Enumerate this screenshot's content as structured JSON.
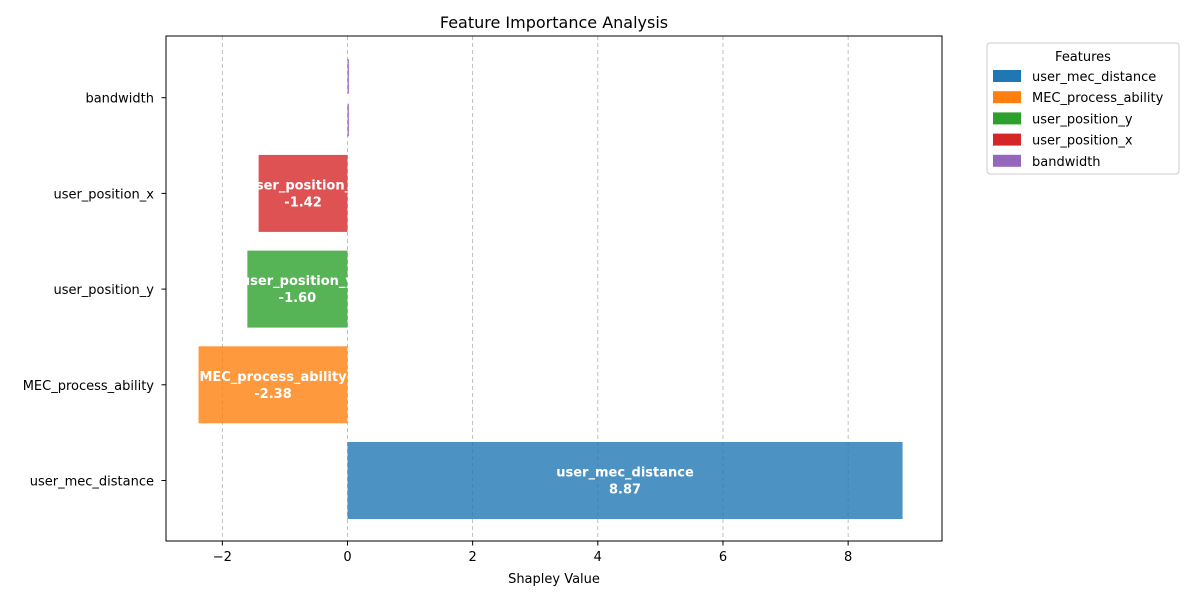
{
  "chart_data": {
    "type": "bar",
    "orientation": "horizontal",
    "title": "Feature Importance Analysis",
    "xlabel": "Shapley Value",
    "ylabel": "",
    "xlim": [
      -2.9,
      9.5
    ],
    "x_ticks": [
      -2,
      0,
      2,
      4,
      6,
      8
    ],
    "x_tick_labels": [
      "−2",
      "0",
      "2",
      "4",
      "6",
      "8"
    ],
    "grid": "x-dashed",
    "categories": [
      "user_mec_distance",
      "MEC_process_ability",
      "user_position_y",
      "user_position_x",
      "bandwidth"
    ],
    "values": [
      8.87,
      -2.38,
      -1.6,
      -1.42,
      0.0
    ],
    "bar_text": [
      {
        "name": "user_mec_distance",
        "value": "8.87"
      },
      {
        "name": "MEC_process_ability",
        "value": "-2.38"
      },
      {
        "name": "user_position_y",
        "value": "-1.60"
      },
      {
        "name": "user_position_x",
        "value": "-1.42"
      },
      {
        "name": "bandwidth",
        "value": ""
      }
    ],
    "colors": [
      "#1f77b4",
      "#ff7f0e",
      "#2ca02c",
      "#d62728",
      "#9467bd"
    ],
    "legend": {
      "title": "Features",
      "placement": "outside-top-right",
      "entries": [
        "user_mec_distance",
        "MEC_process_ability",
        "user_position_y",
        "user_position_x",
        "bandwidth"
      ]
    }
  }
}
